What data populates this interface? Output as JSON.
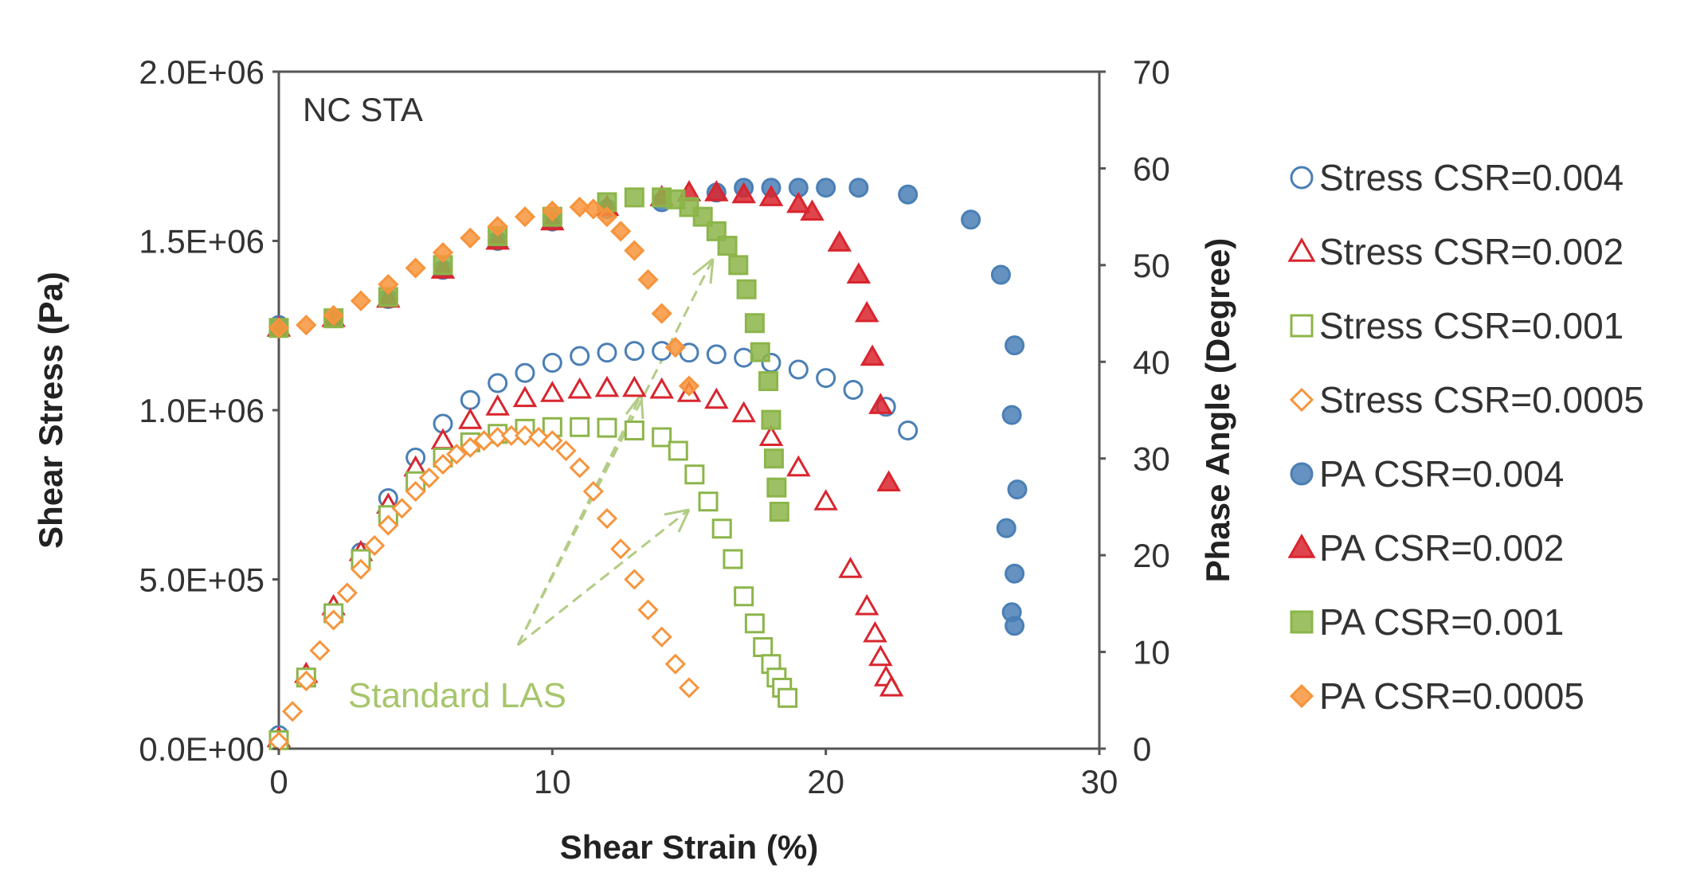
{
  "chart_data": {
    "type": "scatter",
    "title": "NC STA",
    "xlabel": "Shear Strain (%)",
    "ylabel": "Shear Stress (Pa)",
    "y2label": "Phase Angle (Degree)",
    "xlim": [
      0,
      30
    ],
    "ylim": [
      0,
      2000000
    ],
    "y2lim": [
      0,
      70
    ],
    "xticks": [
      0,
      10,
      20,
      30
    ],
    "xtick_labels": [
      "0",
      "10",
      "20",
      "30"
    ],
    "yticks": [
      0,
      500000,
      1000000,
      1500000,
      2000000
    ],
    "ytick_labels": [
      "0.0E+00",
      "5.0E+05",
      "1.0E+06",
      "1.5E+06",
      "2.0E+06"
    ],
    "y2ticks": [
      0,
      10,
      20,
      30,
      40,
      50,
      60,
      70
    ],
    "y2tick_labels": [
      "0",
      "10",
      "20",
      "30",
      "40",
      "50",
      "60",
      "70"
    ],
    "grid": false,
    "legend_position": "right",
    "annotation": "Standard LAS",
    "colors": {
      "blue": "#4a7fb5",
      "red": "#d9252e",
      "green": "#8cb54a",
      "orange": "#f7943c"
    },
    "series": [
      {
        "name": "Stress CSR=0.004",
        "axis": "left",
        "marker": "circle",
        "filled": false,
        "color": "#4a7fb5",
        "x": [
          0,
          1,
          2,
          3,
          4,
          5,
          6,
          7,
          8,
          9,
          10,
          11,
          12,
          13,
          14,
          15,
          16,
          17,
          18,
          19,
          20,
          21,
          22.2,
          23
        ],
        "y": [
          40000,
          210000,
          400000,
          580000,
          740000,
          860000,
          960000,
          1030000,
          1080000,
          1110000,
          1140000,
          1160000,
          1170000,
          1175000,
          1175000,
          1170000,
          1165000,
          1155000,
          1140000,
          1120000,
          1095000,
          1060000,
          1010000,
          940000
        ]
      },
      {
        "name": "Stress CSR=0.002",
        "axis": "left",
        "marker": "triangle",
        "filled": false,
        "color": "#d9252e",
        "x": [
          0,
          1,
          2,
          3,
          4,
          5,
          6,
          7,
          8,
          9,
          10,
          11,
          12,
          13,
          14,
          15,
          16,
          17,
          18,
          19,
          20,
          20.9,
          21.5,
          21.8,
          22.0,
          22.2,
          22.4
        ],
        "y": [
          30000,
          220000,
          420000,
          580000,
          720000,
          830000,
          910000,
          970000,
          1010000,
          1035000,
          1050000,
          1060000,
          1065000,
          1065000,
          1060000,
          1050000,
          1030000,
          990000,
          920000,
          830000,
          730000,
          530000,
          420000,
          340000,
          270000,
          210000,
          180000
        ]
      },
      {
        "name": "Stress CSR=0.001",
        "axis": "left",
        "marker": "square",
        "filled": false,
        "color": "#8cb54a",
        "x": [
          0,
          1,
          2,
          3,
          4,
          5,
          6,
          7,
          8,
          9,
          10,
          11,
          12,
          13,
          14,
          14.6,
          15.2,
          15.7,
          16.2,
          16.6,
          17.0,
          17.4,
          17.7,
          18.0,
          18.2,
          18.4,
          18.6
        ],
        "y": [
          25000,
          210000,
          400000,
          560000,
          690000,
          790000,
          860000,
          905000,
          930000,
          945000,
          950000,
          950000,
          948000,
          940000,
          920000,
          880000,
          810000,
          730000,
          650000,
          560000,
          450000,
          370000,
          300000,
          250000,
          210000,
          180000,
          150000
        ]
      },
      {
        "name": "Stress CSR=0.0005",
        "axis": "left",
        "marker": "diamond",
        "filled": false,
        "color": "#f7943c",
        "x": [
          0,
          0.5,
          1,
          1.5,
          2,
          2.5,
          3,
          3.5,
          4,
          4.5,
          5,
          5.5,
          6,
          6.5,
          7,
          7.5,
          8,
          8.5,
          9,
          9.5,
          10,
          10.5,
          11,
          11.5,
          12,
          12.5,
          13,
          13.5,
          14,
          14.5,
          15
        ],
        "y": [
          20000,
          110000,
          200000,
          290000,
          380000,
          460000,
          530000,
          600000,
          660000,
          710000,
          760000,
          800000,
          840000,
          870000,
          890000,
          910000,
          920000,
          925000,
          925000,
          920000,
          910000,
          880000,
          830000,
          760000,
          680000,
          590000,
          500000,
          410000,
          330000,
          250000,
          180000
        ]
      },
      {
        "name": "PA CSR=0.004",
        "axis": "right",
        "marker": "circle",
        "filled": true,
        "color": "#4a7fb5",
        "x": [
          0,
          2,
          4,
          6,
          8,
          10,
          12,
          14,
          16,
          17,
          18,
          19,
          20,
          21.2,
          23,
          25.3,
          26.4,
          26.9,
          26.8,
          27.0,
          26.6,
          26.9,
          26.8,
          26.9
        ],
        "y": [
          43.8,
          44.5,
          46.5,
          49.5,
          52.5,
          54.5,
          55.8,
          56.5,
          57.5,
          58,
          58,
          58,
          58,
          58,
          57.3,
          54.7,
          49,
          41.7,
          34.5,
          26.8,
          22.8,
          18.1,
          14.1,
          12.7
        ]
      },
      {
        "name": "PA CSR=0.002",
        "axis": "right",
        "marker": "triangle",
        "filled": true,
        "color": "#d9252e",
        "x": [
          0,
          2,
          4,
          6,
          8,
          10,
          12,
          14,
          15,
          16,
          17,
          18,
          19,
          19.5,
          20.5,
          21.2,
          21.5,
          21.7,
          22.0,
          22.3
        ],
        "y": [
          43.5,
          44.5,
          46.5,
          49.5,
          52.5,
          54.5,
          56,
          57,
          57.5,
          57.5,
          57.3,
          57,
          56.3,
          55.5,
          52.3,
          49,
          45,
          40.5,
          35.5,
          27.5
        ]
      },
      {
        "name": "PA CSR=0.001",
        "axis": "right",
        "marker": "square",
        "filled": true,
        "color": "#8cb54a",
        "x": [
          0,
          2,
          4,
          6,
          8,
          10,
          12,
          13,
          14,
          14.5,
          15,
          15.5,
          16,
          16.4,
          16.8,
          17.1,
          17.4,
          17.6,
          17.9,
          18.0,
          18.1,
          18.2,
          18.3
        ],
        "y": [
          43.5,
          44.5,
          46.7,
          50,
          53,
          55,
          56.5,
          57,
          57,
          56.8,
          56,
          55,
          53.5,
          52,
          50,
          47.5,
          44,
          41,
          38,
          34,
          30,
          27,
          24.5
        ]
      },
      {
        "name": "PA CSR=0.0005",
        "axis": "right",
        "marker": "diamond",
        "filled": true,
        "color": "#f7943c",
        "x": [
          0,
          1,
          2,
          3,
          4,
          5,
          6,
          7,
          8,
          9,
          10,
          11,
          11.5,
          12,
          12.5,
          13,
          13.5,
          14,
          14.5,
          15
        ],
        "y": [
          43.5,
          43.8,
          44.8,
          46.3,
          48,
          49.7,
          51.3,
          52.8,
          54,
          55,
          55.6,
          56,
          55.8,
          55,
          53.5,
          51.5,
          48.5,
          45,
          41.5,
          37.5
        ]
      }
    ]
  }
}
